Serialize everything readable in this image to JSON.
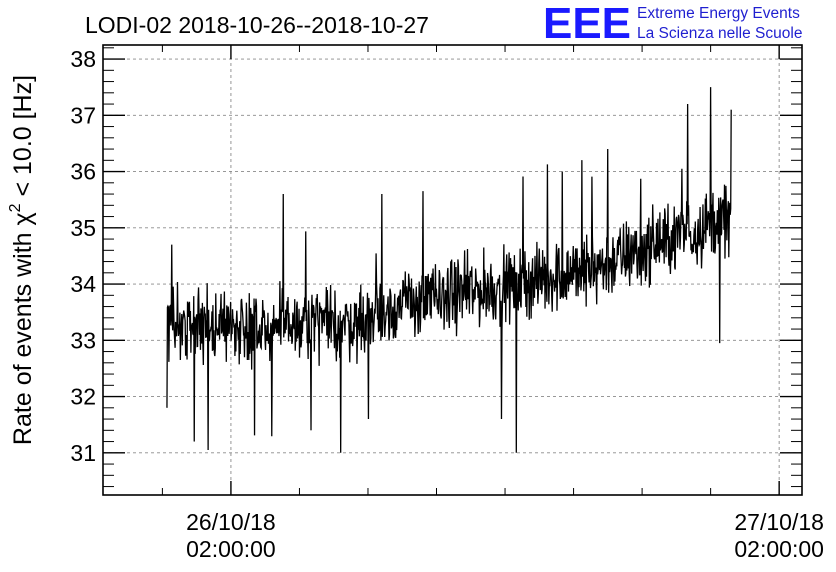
{
  "header": {
    "title": "LODI-02 2018-10-26--2018-10-27",
    "logo_text": "EEE",
    "org_line1": "Extreme Energy Events",
    "org_line2": "La Scienza nelle Scuole"
  },
  "colors": {
    "series": "#000000",
    "grid": "#8a8a8a",
    "brand": "#1a1aff",
    "brand_text": "#1f1fd0"
  },
  "chart_data": {
    "type": "line",
    "title": "LODI-02 2018-10-26--2018-10-27",
    "ylabel": "Rate of events with χ² < 10.0 [Hz]",
    "ylabel_parts": [
      "Rate of events with χ",
      "2",
      " < 10.0 [Hz]"
    ],
    "xlabel": "",
    "x_unit": "hours since 2018-10-25 00:00:00",
    "xlim": [
      20.4,
      51.0
    ],
    "ylim": [
      30.25,
      38.25
    ],
    "grid": true,
    "y_ticks": [
      31,
      32,
      33,
      34,
      35,
      36,
      37,
      38
    ],
    "x_ticks": [
      {
        "x": 26,
        "line1": "26/10/18",
        "line2": "02:00:00"
      },
      {
        "x": 50,
        "line1": "27/10/18",
        "line2": "02:00:00"
      }
    ],
    "series": [
      {
        "x_start": 23.2,
        "x_end": 47.9,
        "trend": [
          [
            23.2,
            33.3
          ],
          [
            27.0,
            33.25
          ],
          [
            31.0,
            33.3
          ],
          [
            34.0,
            33.7
          ],
          [
            38.0,
            33.95
          ],
          [
            42.0,
            34.3
          ],
          [
            47.9,
            35.2
          ]
        ],
        "noise_halfwidth": 0.75,
        "samples": 1180,
        "extremes": [
          {
            "x": 23.2,
            "y": 31.8
          },
          {
            "x": 23.4,
            "y": 34.7
          },
          {
            "x": 24.4,
            "y": 31.2
          },
          {
            "x": 25.0,
            "y": 31.05
          },
          {
            "x": 28.3,
            "y": 35.6
          },
          {
            "x": 29.5,
            "y": 31.4
          },
          {
            "x": 30.8,
            "y": 31.0
          },
          {
            "x": 32.6,
            "y": 35.6
          },
          {
            "x": 38.5,
            "y": 31.0
          },
          {
            "x": 40.5,
            "y": 36.0
          },
          {
            "x": 42.5,
            "y": 36.4
          },
          {
            "x": 46.0,
            "y": 37.2
          },
          {
            "x": 47.0,
            "y": 37.5
          },
          {
            "x": 47.4,
            "y": 32.95
          },
          {
            "x": 47.9,
            "y": 37.1
          }
        ]
      }
    ]
  }
}
